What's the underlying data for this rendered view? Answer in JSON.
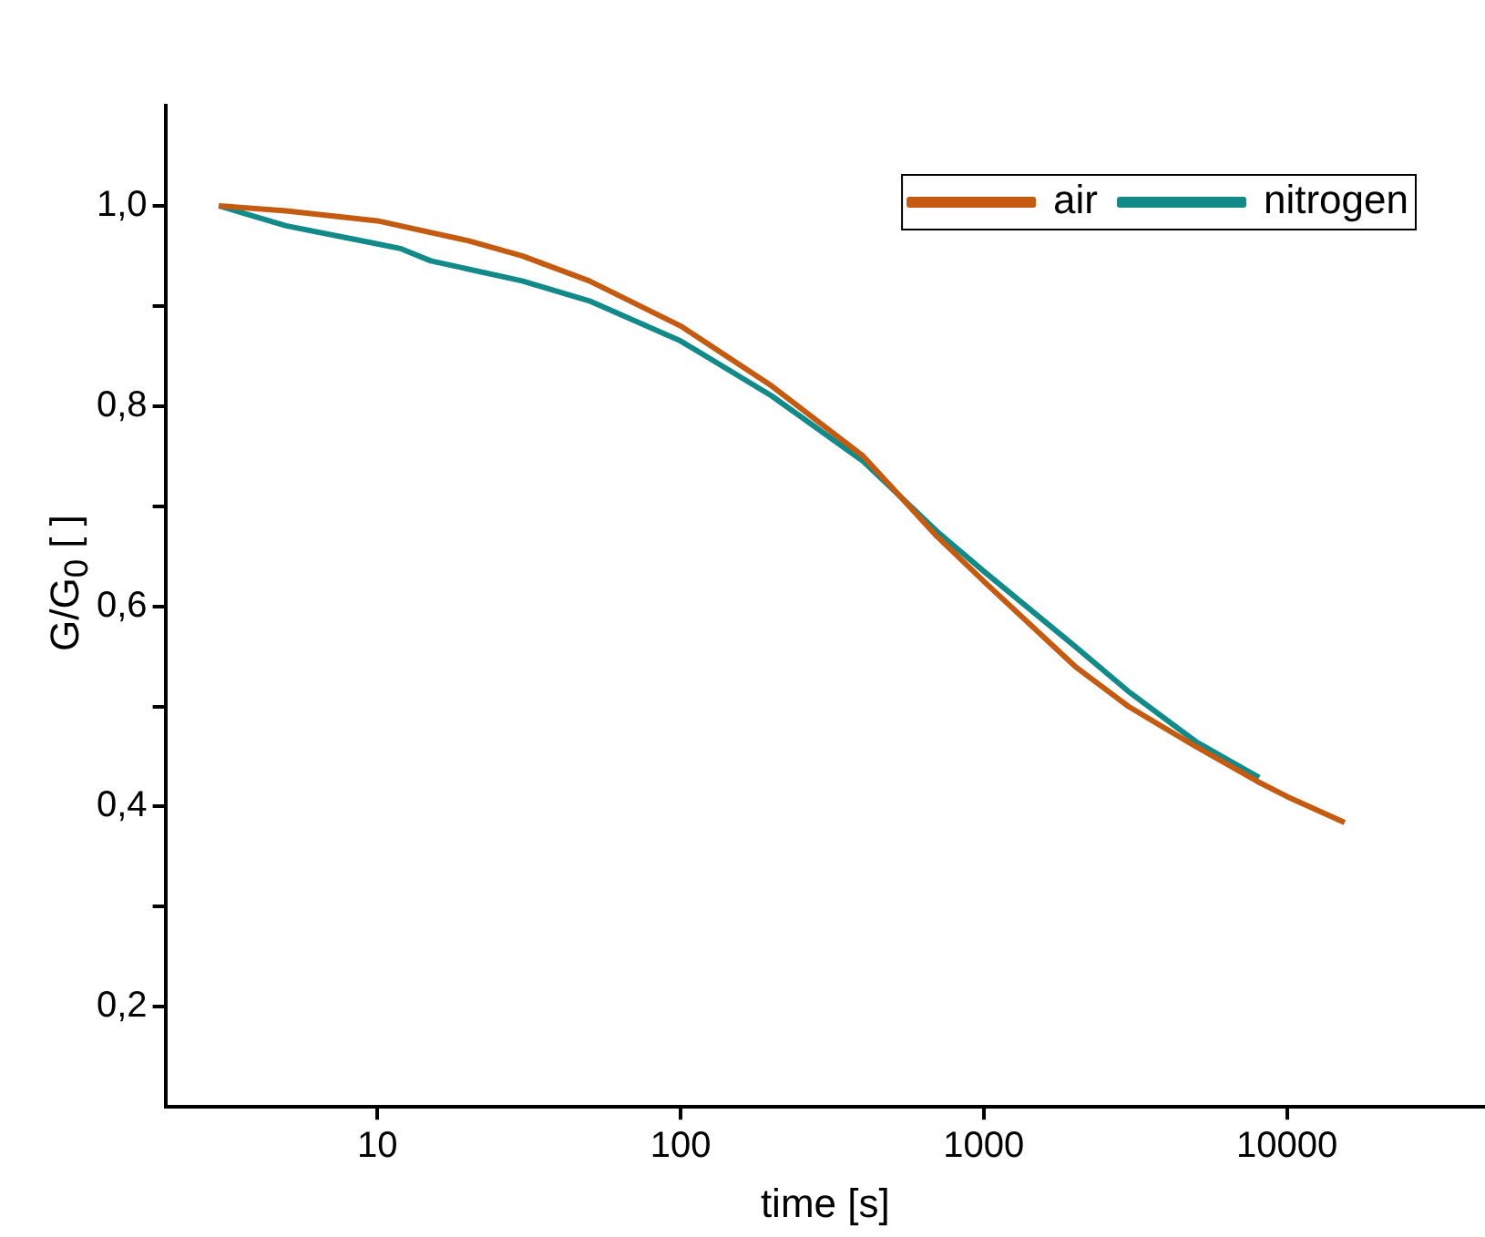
{
  "chart_data": {
    "type": "line",
    "xlabel": "time [s]",
    "ylabel": "G/G$_{0}$ [ ]",
    "log": "x",
    "xlim": [
      2,
      45000
    ],
    "xticks": [
      10,
      100,
      1000,
      10000
    ],
    "ylim": [
      0.1,
      1.1
    ],
    "yticks": [
      {
        "value": 0.2,
        "label": "0,2"
      },
      {
        "value": 0.3,
        "label": null
      },
      {
        "value": 0.4,
        "label": "0,4"
      },
      {
        "value": 0.5,
        "label": null
      },
      {
        "value": 0.6,
        "label": "0,6"
      },
      {
        "value": 0.7,
        "label": null
      },
      {
        "value": 0.8,
        "label": "0,8"
      },
      {
        "value": 0.9,
        "label": null
      },
      {
        "value": 1.0,
        "label": "1,0"
      }
    ],
    "grid": false,
    "legend": "top right",
    "marker": "none",
    "line_style": "solid",
    "series": [
      {
        "name": "air",
        "color": "#c55a11",
        "x": [
          3,
          5,
          10,
          20,
          30,
          50,
          100,
          200,
          400,
          700,
          1000,
          2000,
          3000,
          5000,
          8000,
          10000,
          15500
        ],
        "values": [
          1.0,
          0.995,
          0.985,
          0.965,
          0.95,
          0.925,
          0.88,
          0.82,
          0.75,
          0.67,
          0.625,
          0.54,
          0.5,
          0.46,
          0.425,
          0.41,
          0.384
        ]
      },
      {
        "name": "nitrogen",
        "color": "#138a8a",
        "x": [
          3,
          5,
          10,
          12,
          15,
          30,
          50,
          100,
          200,
          400,
          700,
          1000,
          2000,
          3000,
          5000,
          8100
        ],
        "values": [
          1.0,
          0.98,
          0.962,
          0.957,
          0.945,
          0.925,
          0.905,
          0.865,
          0.81,
          0.745,
          0.675,
          0.635,
          0.56,
          0.515,
          0.465,
          0.429
        ]
      }
    ]
  }
}
